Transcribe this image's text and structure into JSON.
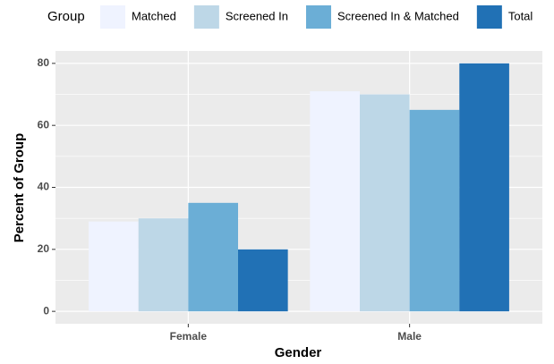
{
  "chart_data": {
    "type": "bar",
    "x_label": "Gender",
    "y_label": "Percent of Group",
    "legend_title": "Group",
    "categories": [
      "Female",
      "Male"
    ],
    "series": [
      {
        "name": "Matched",
        "color": "#eff3ff",
        "values": [
          29,
          71
        ]
      },
      {
        "name": "Screened In",
        "color": "#bdd7e7",
        "values": [
          30,
          70
        ]
      },
      {
        "name": "Screened In & Matched",
        "color": "#6baed6",
        "values": [
          35,
          65
        ]
      },
      {
        "name": "Total",
        "color": "#2171b5",
        "values": [
          20,
          80
        ]
      }
    ],
    "ylim": [
      -4,
      84
    ],
    "yticks": [
      0,
      20,
      40,
      60,
      80
    ],
    "yminor": [
      10,
      30,
      50,
      70
    ],
    "grid": true,
    "legend": "top"
  }
}
